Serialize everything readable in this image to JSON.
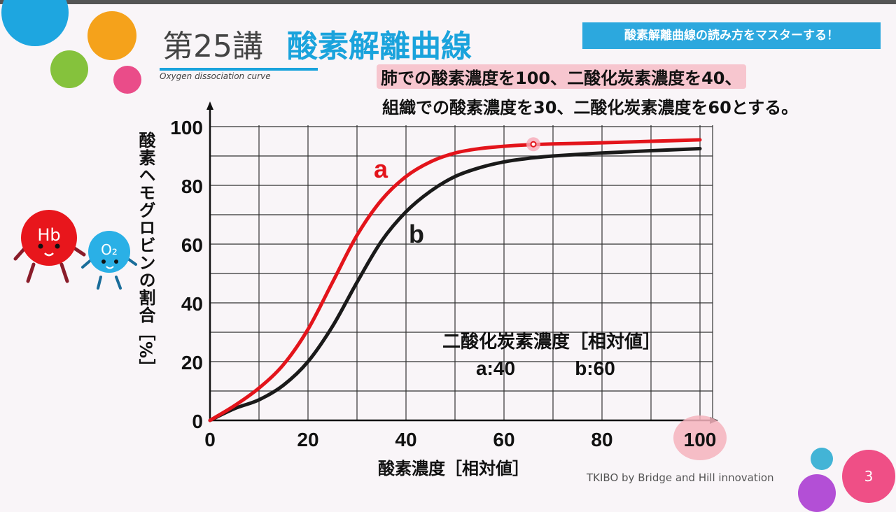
{
  "header": {
    "lesson": "第25講",
    "title": "酸素解離曲線",
    "subtitle": "Oxygen dissociation curve",
    "banner": "酸素解離曲線の読み方をマスターする！"
  },
  "conditions": {
    "line1": "肺での酸素濃度を100、二酸化炭素濃度を40、",
    "line2": "組織での酸素濃度を30、二酸化炭素濃度を60とする。"
  },
  "mascots": {
    "hb": "Hb",
    "o2": "O₂"
  },
  "chart_data": {
    "type": "line",
    "xlabel": "酸素濃度［相対値］",
    "ylabel": "酸素ヘモグロビンの割合［%］",
    "xlim": [
      0,
      100
    ],
    "ylim": [
      0,
      100
    ],
    "xticks": [
      "0",
      "20",
      "40",
      "60",
      "80",
      "100"
    ],
    "yticks": [
      "0",
      "20",
      "40",
      "60",
      "80",
      "100"
    ],
    "grid": true,
    "legend_title": "二酸化炭素濃度［相対値］",
    "legend_items": [
      "a:40",
      "b:60"
    ],
    "series": [
      {
        "name": "a",
        "color": "#e3141b",
        "x": [
          0,
          5,
          10,
          15,
          20,
          25,
          30,
          35,
          40,
          45,
          50,
          55,
          60,
          65,
          70,
          80,
          90,
          100
        ],
        "y": [
          0,
          5,
          11,
          19,
          31,
          47,
          63,
          75,
          83,
          88,
          91,
          92.5,
          93.3,
          93.8,
          94.1,
          94.5,
          95,
          95.5
        ]
      },
      {
        "name": "b",
        "color": "#1a1a1a",
        "x": [
          0,
          5,
          10,
          15,
          20,
          25,
          30,
          35,
          40,
          45,
          50,
          55,
          60,
          65,
          70,
          80,
          90,
          100
        ],
        "y": [
          0,
          4,
          7,
          12,
          20,
          32,
          47,
          61,
          71,
          78,
          83,
          86,
          88,
          89.2,
          90,
          91,
          91.8,
          92.5
        ]
      }
    ],
    "highlight": {
      "x": 66,
      "y": 94
    },
    "highlight_tick": "100"
  }
}
